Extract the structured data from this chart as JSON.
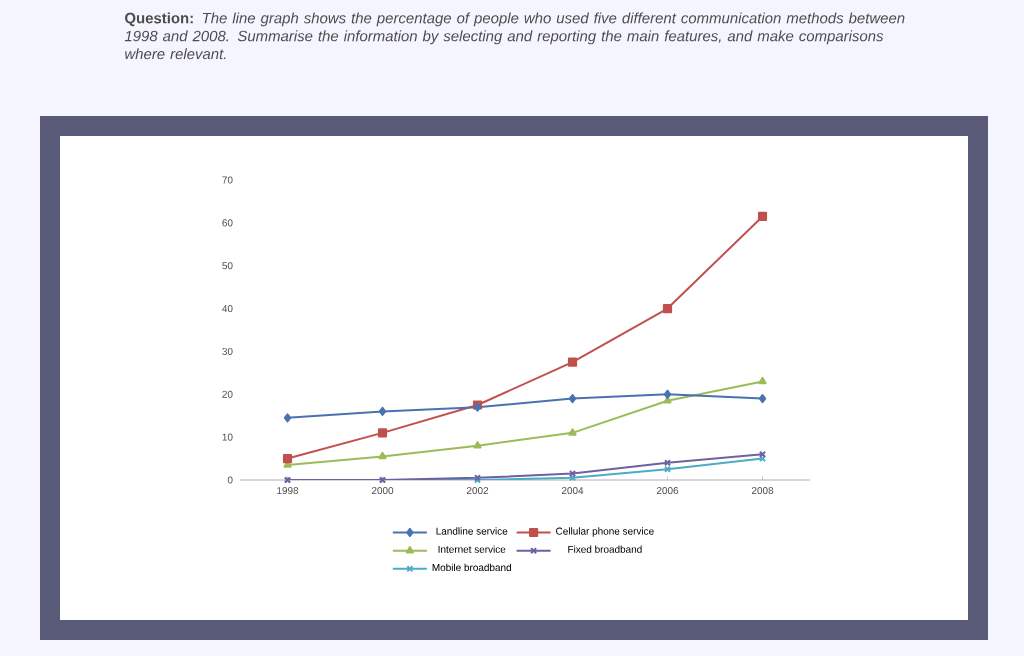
{
  "chart_data": {
    "type": "line",
    "title": "**Question:** *The line graph shows the percentage of people who used five different communication methods between 1998 and 2008. Summarise the information by selecting and reporting the main features, and make comparisons where relevant.*",
    "categories": [
      "1998",
      "2000",
      "2002",
      "2004",
      "2006",
      "2008"
    ],
    "series": [
      {
        "name": "Landline service",
        "color": "#4a72b0",
        "marker": "diamond",
        "values": [
          14.5,
          16,
          17,
          19,
          20,
          19
        ]
      },
      {
        "name": "Cellular phone service",
        "color": "#c0504d",
        "marker": "square",
        "values": [
          5,
          11,
          17.5,
          27.5,
          40,
          61.5
        ]
      },
      {
        "name": "Internet service",
        "color": "#9bbb59",
        "marker": "triangle",
        "values": [
          3.5,
          5.5,
          8,
          11,
          18.5,
          23
        ]
      },
      {
        "name": "Fixed broadband",
        "color": "#7060a0",
        "marker": "cross",
        "values": [
          0,
          0,
          0.5,
          1.5,
          4,
          6
        ]
      },
      {
        "name": "Mobile broadband",
        "color": "#4bacc6",
        "marker": "cross",
        "values": [
          0,
          0,
          0,
          0.5,
          2.5,
          5
        ]
      }
    ],
    "ylim": [
      0,
      70
    ],
    "yticks": [
      0,
      10,
      20,
      30,
      40,
      50,
      60,
      70
    ],
    "grid": false,
    "legend": "bottom",
    "line_style": "solid"
  }
}
